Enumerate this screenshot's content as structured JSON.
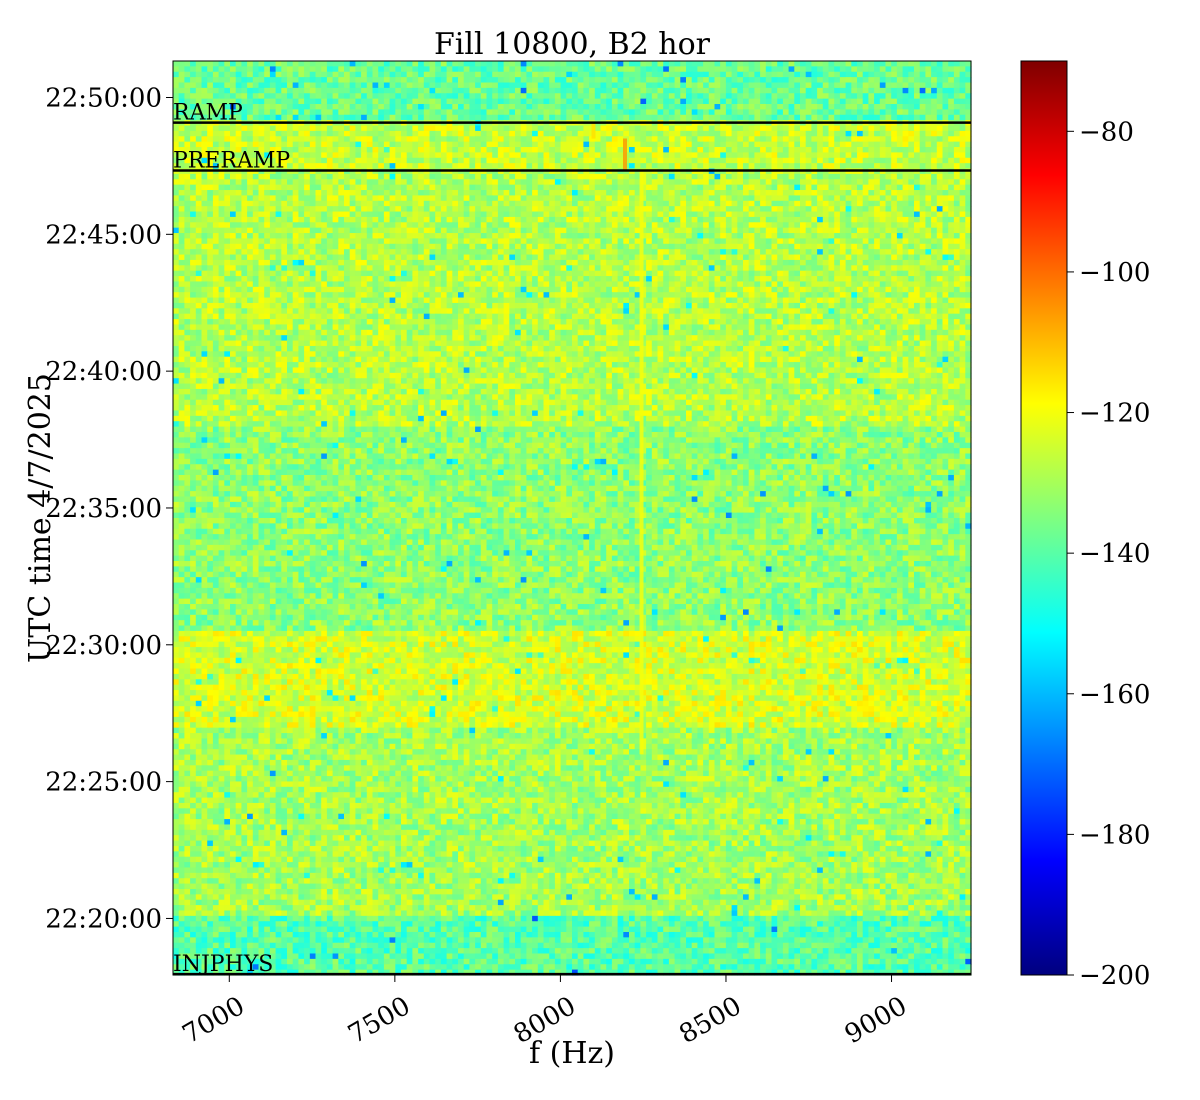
{
  "chart_data": {
    "type": "heatmap",
    "title": "Fill 10800, B2 hor",
    "xlabel": "f (Hz)",
    "ylabel": "UTC time 4/7/2025",
    "xlim": [
      6830,
      9240
    ],
    "ylim": [
      "22:17:56",
      "22:51:20"
    ],
    "x_ticks": [
      7000,
      7500,
      8000,
      8500,
      9000
    ],
    "y_ticks": [
      "22:20:00",
      "22:25:00",
      "22:30:00",
      "22:35:00",
      "22:40:00",
      "22:45:00",
      "22:50:00"
    ],
    "colorbar": {
      "colormap": "jet",
      "range": [
        -200,
        -70
      ],
      "ticks": [
        -80,
        -100,
        -120,
        -140,
        -160,
        -180,
        -200
      ]
    },
    "markers": [
      {
        "label": "RAMP",
        "time": "22:49:05"
      },
      {
        "label": "PRERAMP",
        "time": "22:47:20"
      },
      {
        "label": "INJPHYS",
        "time": "22:17:58"
      }
    ],
    "time_bands": [
      {
        "from": "22:17:56",
        "to": "22:20:00",
        "level_db": -140
      },
      {
        "from": "22:20:00",
        "to": "22:27:00",
        "level_db": -130
      },
      {
        "from": "22:27:00",
        "to": "22:30:30",
        "level_db": -124
      },
      {
        "from": "22:30:30",
        "to": "22:38:00",
        "level_db": -133
      },
      {
        "from": "22:38:00",
        "to": "22:47:20",
        "level_db": -128
      },
      {
        "from": "22:47:20",
        "to": "22:49:05",
        "level_db": -126
      },
      {
        "from": "22:49:05",
        "to": "22:51:20",
        "level_db": -138
      }
    ],
    "features": [
      {
        "f_hz": 8245,
        "from": "22:26:00",
        "to": "22:47:20",
        "level_db": -120
      },
      {
        "f_hz": 8195,
        "from": "22:47:20",
        "to": "22:48:30",
        "level_db": -106
      },
      {
        "f_hz": 8100,
        "from": "22:48:30",
        "to": "22:49:05",
        "level_db": -115
      }
    ]
  }
}
